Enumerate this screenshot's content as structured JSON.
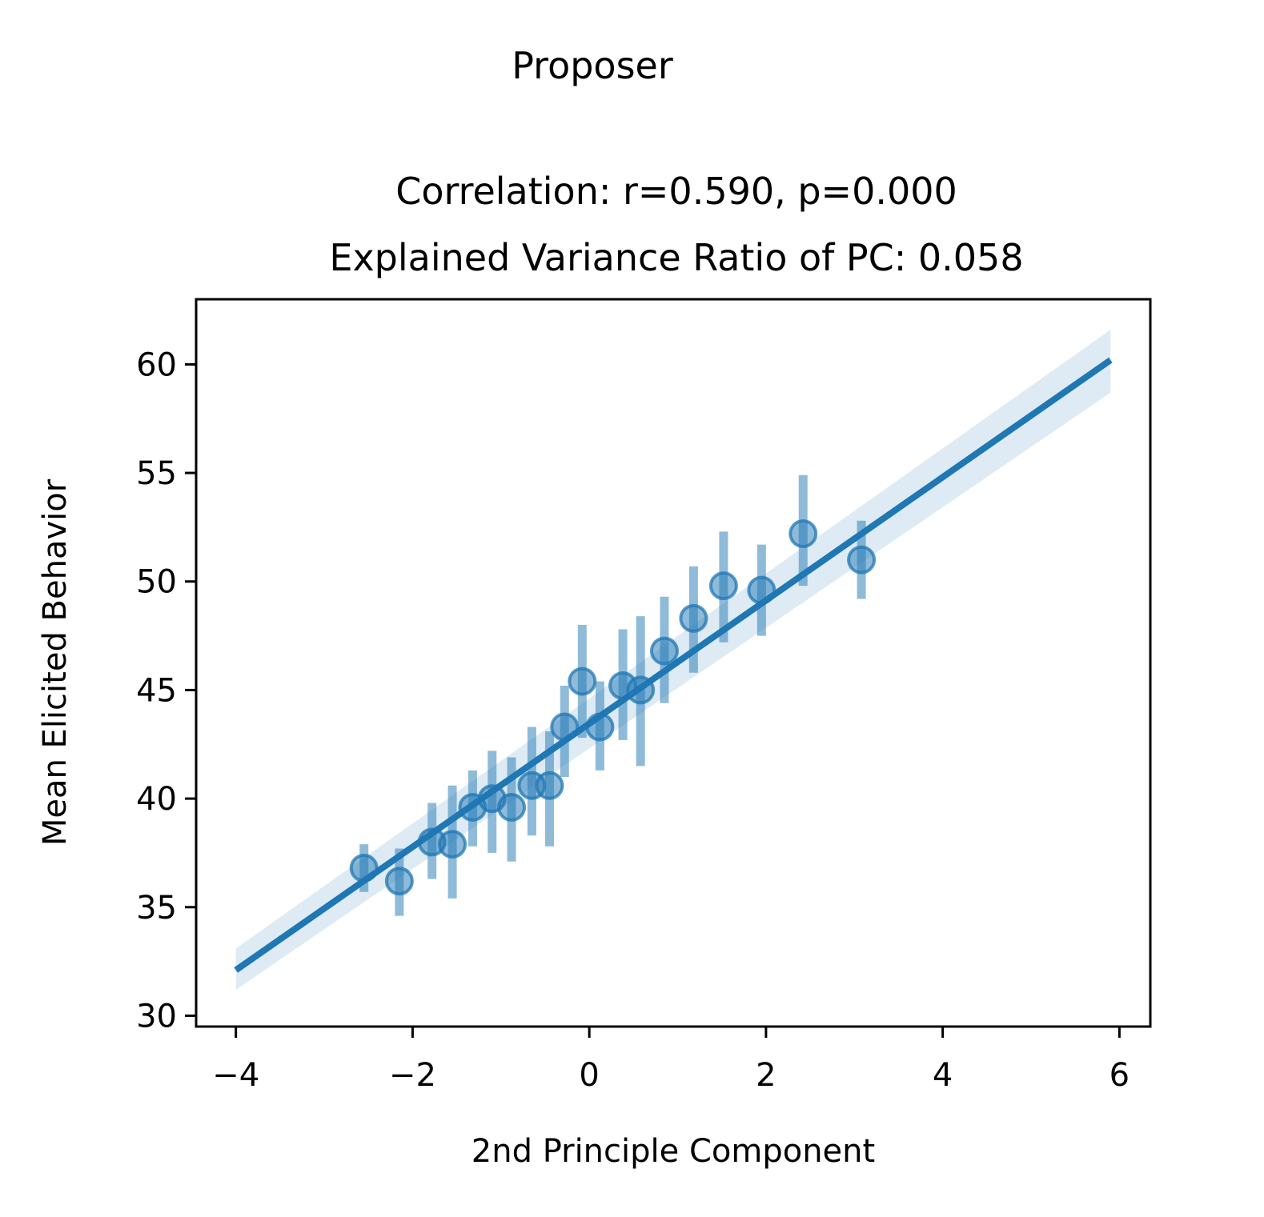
{
  "figure": {
    "suptitle": "Proposer",
    "title_line1": "Correlation: r=0.590, p=0.000",
    "title_line2": "Explained Variance Ratio of PC: 0.058"
  },
  "chart_data": {
    "type": "scatter",
    "xlabel": "2nd Principle Component",
    "ylabel": "Mean Elicited Behavior",
    "xlim": [
      -4.45,
      6.35
    ],
    "ylim": [
      29.5,
      63.0
    ],
    "xticks": [
      -4,
      -2,
      0,
      2,
      4,
      6
    ],
    "xtick_labels": [
      "−4",
      "−2",
      "0",
      "2",
      "4",
      "6"
    ],
    "yticks": [
      30,
      35,
      40,
      45,
      50,
      55,
      60
    ],
    "ytick_labels": [
      "30",
      "35",
      "40",
      "45",
      "50",
      "55",
      "60"
    ],
    "grid": false,
    "legend": "none",
    "color": "#1f77b4",
    "points": [
      {
        "x": -2.55,
        "y": 36.8,
        "err_low": 35.7,
        "err_high": 37.9
      },
      {
        "x": -2.15,
        "y": 36.2,
        "err_low": 34.6,
        "err_high": 37.7
      },
      {
        "x": -1.78,
        "y": 38.0,
        "err_low": 36.3,
        "err_high": 39.8
      },
      {
        "x": -1.55,
        "y": 37.9,
        "err_low": 35.4,
        "err_high": 40.6
      },
      {
        "x": -1.32,
        "y": 39.6,
        "err_low": 37.8,
        "err_high": 41.3
      },
      {
        "x": -1.1,
        "y": 40.0,
        "err_low": 37.5,
        "err_high": 42.2
      },
      {
        "x": -0.88,
        "y": 39.6,
        "err_low": 37.1,
        "err_high": 41.9
      },
      {
        "x": -0.65,
        "y": 40.6,
        "err_low": 38.3,
        "err_high": 43.3
      },
      {
        "x": -0.45,
        "y": 40.6,
        "err_low": 37.8,
        "err_high": 43.1
      },
      {
        "x": -0.28,
        "y": 43.3,
        "err_low": 41.0,
        "err_high": 45.2
      },
      {
        "x": -0.08,
        "y": 45.4,
        "err_low": 42.8,
        "err_high": 48.0
      },
      {
        "x": 0.12,
        "y": 43.3,
        "err_low": 41.3,
        "err_high": 45.4
      },
      {
        "x": 0.38,
        "y": 45.2,
        "err_low": 42.7,
        "err_high": 47.8
      },
      {
        "x": 0.58,
        "y": 45.0,
        "err_low": 41.5,
        "err_high": 48.4
      },
      {
        "x": 0.85,
        "y": 46.8,
        "err_low": 44.4,
        "err_high": 49.3
      },
      {
        "x": 1.18,
        "y": 48.3,
        "err_low": 45.8,
        "err_high": 50.7
      },
      {
        "x": 1.52,
        "y": 49.8,
        "err_low": 47.2,
        "err_high": 52.3
      },
      {
        "x": 1.95,
        "y": 49.6,
        "err_low": 47.5,
        "err_high": 51.7
      },
      {
        "x": 2.42,
        "y": 52.2,
        "err_low": 49.8,
        "err_high": 54.9
      },
      {
        "x": 3.08,
        "y": 51.0,
        "err_low": 49.2,
        "err_high": 52.8
      }
    ],
    "fit_line": {
      "x_start": -4.0,
      "y_start": 32.1,
      "x_end": 5.9,
      "y_end": 60.2,
      "ci_start": [
        31.2,
        33.1
      ],
      "ci_end": [
        58.7,
        61.6
      ]
    }
  }
}
